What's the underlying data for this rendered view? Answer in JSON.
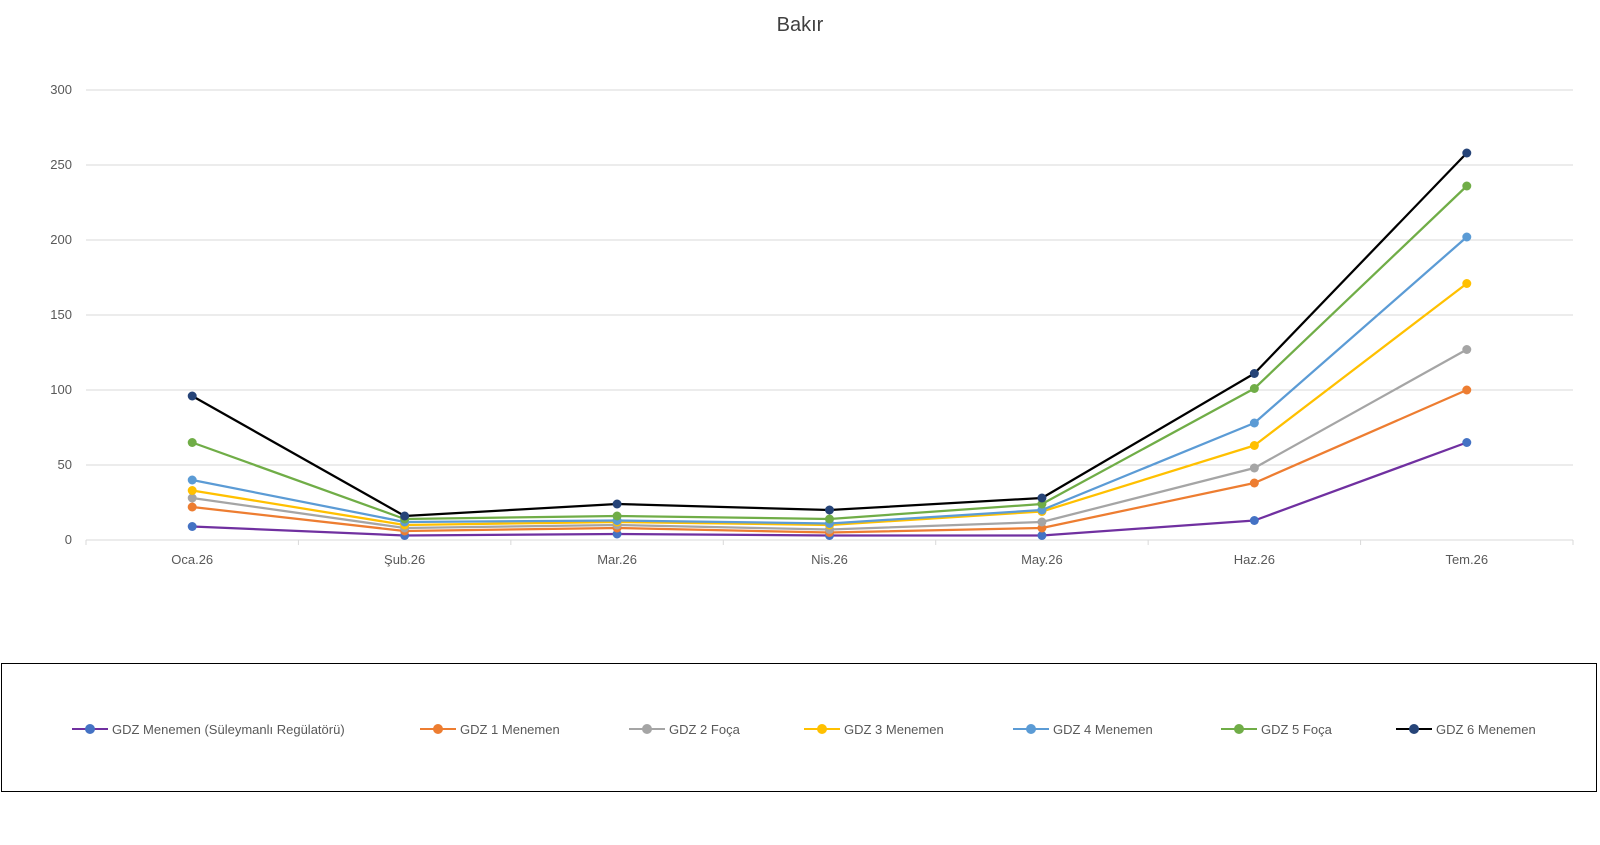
{
  "chart_data": {
    "type": "line",
    "title": "Bakır",
    "xlabel": "",
    "ylabel": "",
    "categories": [
      "Oca.26",
      "Şub.26",
      "Mar.26",
      "Nis.26",
      "May.26",
      "Haz.26",
      "Tem.26"
    ],
    "ylim": [
      0,
      300
    ],
    "yticks": [
      0,
      50,
      100,
      150,
      200,
      250,
      300
    ],
    "grid": true,
    "legend_position": "bottom",
    "series": [
      {
        "name": "GDZ Menemen (Süleymanlı Regülatörü)",
        "line_color": "#7030A0",
        "marker_color": "#4472C4",
        "values": [
          9,
          3,
          4,
          3,
          3,
          13,
          65
        ]
      },
      {
        "name": "GDZ 1 Menemen",
        "line_color": "#ED7D31",
        "marker_color": "#ED7D31",
        "values": [
          22,
          6,
          8,
          5,
          8,
          38,
          100
        ]
      },
      {
        "name": "GDZ 2 Foça",
        "line_color": "#A5A5A5",
        "marker_color": "#A5A5A5",
        "values": [
          28,
          8,
          10,
          7,
          12,
          48,
          127
        ]
      },
      {
        "name": "GDZ 3 Menemen",
        "line_color": "#FFC000",
        "marker_color": "#FFC000",
        "values": [
          33,
          10,
          12,
          10,
          19,
          63,
          171
        ]
      },
      {
        "name": "GDZ 4 Menemen",
        "line_color": "#5B9BD5",
        "marker_color": "#5B9BD5",
        "values": [
          40,
          12,
          13,
          11,
          20,
          78,
          202
        ]
      },
      {
        "name": "GDZ 5 Foça",
        "line_color": "#70AD47",
        "marker_color": "#70AD47",
        "values": [
          65,
          14,
          16,
          14,
          24,
          101,
          236
        ]
      },
      {
        "name": "GDZ 6 Menemen",
        "line_color": "#000000",
        "marker_color": "#264478",
        "values": [
          96,
          16,
          24,
          20,
          28,
          111,
          258
        ]
      }
    ]
  }
}
